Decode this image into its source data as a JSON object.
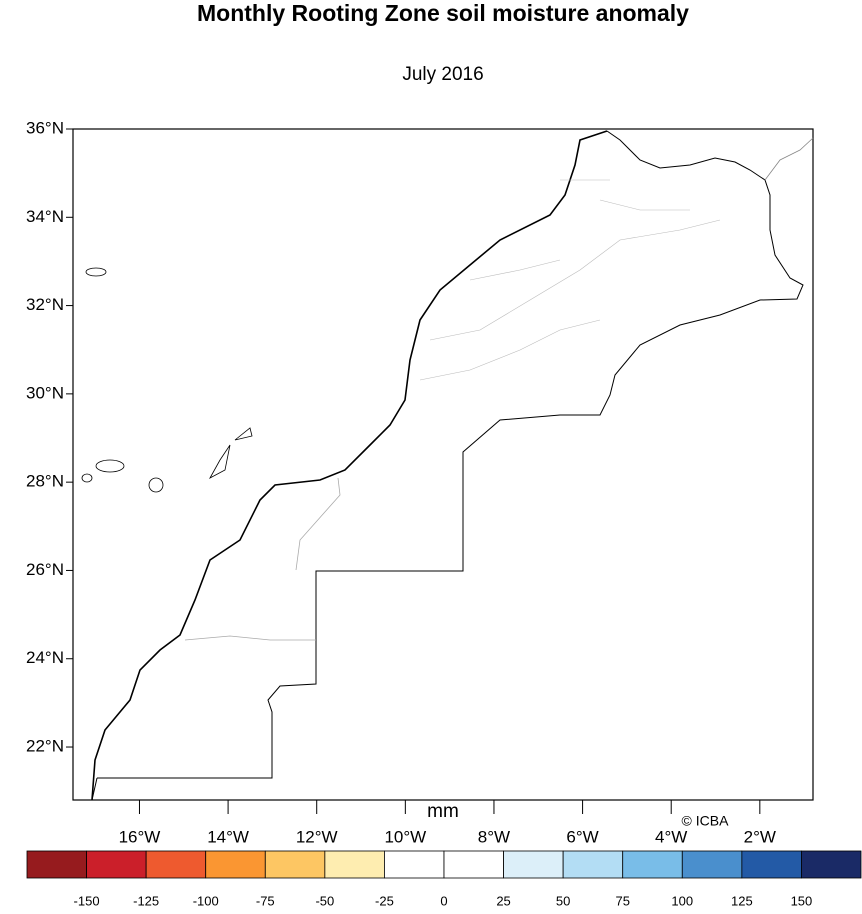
{
  "title": "Monthly Rooting Zone soil moisture anomaly",
  "subtitle": "July 2016",
  "lat_range": [
    20.8,
    36
  ],
  "lon_range": [
    -17.5,
    -0.8
  ],
  "lat_ticks": [
    {
      "value": 36,
      "label": "36°N"
    },
    {
      "value": 34,
      "label": "34°N"
    },
    {
      "value": 32,
      "label": "32°N"
    },
    {
      "value": 30,
      "label": "30°N"
    },
    {
      "value": 28,
      "label": "28°N"
    },
    {
      "value": 26,
      "label": "26°N"
    },
    {
      "value": 24,
      "label": "24°N"
    },
    {
      "value": 22,
      "label": "22°N"
    }
  ],
  "lon_ticks": [
    {
      "value": -16,
      "label": "16°W"
    },
    {
      "value": -14,
      "label": "14°W"
    },
    {
      "value": -12,
      "label": "12°W"
    },
    {
      "value": -10,
      "label": "10°W"
    },
    {
      "value": -8,
      "label": "8°W"
    },
    {
      "value": -6,
      "label": "6°W"
    },
    {
      "value": -4,
      "label": "4°W"
    },
    {
      "value": -2,
      "label": "2°W"
    }
  ],
  "colorbar": {
    "unit": "mm",
    "levels": [
      -150,
      -125,
      -100,
      -75,
      -50,
      -25,
      0,
      25,
      50,
      75,
      100,
      125,
      150
    ],
    "colors": [
      "#961b1e",
      "#cb1f2a",
      "#ee5a2f",
      "#fa9632",
      "#fdc663",
      "#feedb0",
      "#ffffff",
      "#ffffff",
      "#dceff9",
      "#b3ddf4",
      "#79bde8",
      "#4a8fcd",
      "#235aa6",
      "#1a2a66"
    ]
  },
  "credit": "© ICBA"
}
